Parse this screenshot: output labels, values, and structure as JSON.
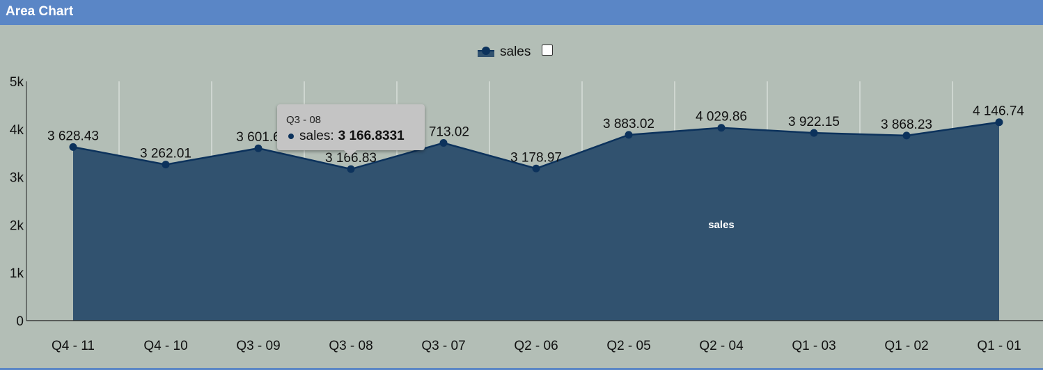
{
  "header": {
    "title": "Area Chart"
  },
  "legend": {
    "label": "sales"
  },
  "tooltip": {
    "title": "Q3 - 08",
    "series": "sales:",
    "value": "3 166.8331"
  },
  "colors": {
    "area_fill": "#31526f",
    "line": "#0c325c",
    "grid": "#e9eeea",
    "axis": "#222222"
  },
  "chart_data": {
    "type": "area",
    "categories": [
      "Q4 - 11",
      "Q4 - 10",
      "Q3 - 09",
      "Q3 - 08",
      "Q3 - 07",
      "Q2 - 06",
      "Q2 - 05",
      "Q2 - 04",
      "Q1 - 03",
      "Q1 - 02",
      "Q1 - 01"
    ],
    "series": [
      {
        "name": "sales",
        "values": [
          3628.43,
          3262.01,
          3601.6,
          3166.83,
          3713.02,
          3178.97,
          3883.02,
          4029.86,
          3922.15,
          3868.23,
          4146.74
        ],
        "labels": [
          "3 628.43",
          "3 262.01",
          "3 601.6",
          "3 166.83",
          "3 713.02",
          "3 178.97",
          "3 883.02",
          "4 029.86",
          "3 922.15",
          "3 868.23",
          "4 146.74"
        ]
      }
    ],
    "area_label": "sales",
    "yticks": [
      "0",
      "1k",
      "2k",
      "3k",
      "4k",
      "5k"
    ],
    "ylim": [
      0,
      5000
    ],
    "grid": true,
    "legend_position": "top-center"
  }
}
